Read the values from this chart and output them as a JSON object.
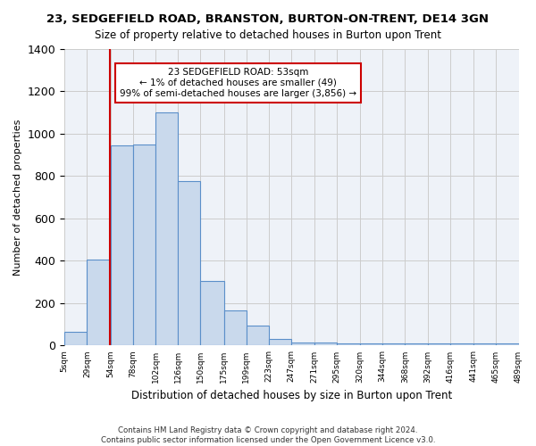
{
  "title": "23, SEDGEFIELD ROAD, BRANSTON, BURTON-ON-TRENT, DE14 3GN",
  "subtitle": "Size of property relative to detached houses in Burton upon Trent",
  "xlabel": "Distribution of detached houses by size in Burton upon Trent",
  "ylabel": "Number of detached properties",
  "footer1": "Contains HM Land Registry data © Crown copyright and database right 2024.",
  "footer2": "Contains public sector information licensed under the Open Government Licence v3.0.",
  "annotation_title": "23 SEDGEFIELD ROAD: 53sqm",
  "annotation_line2": "← 1% of detached houses are smaller (49)",
  "annotation_line3": "99% of semi-detached houses are larger (3,856) →",
  "subject_size": 53,
  "bar_edges": [
    5,
    29,
    54,
    78,
    102,
    126,
    150,
    175,
    199,
    223,
    247,
    271,
    295,
    320,
    344,
    368,
    392,
    416,
    441,
    465,
    489
  ],
  "bar_heights": [
    65,
    405,
    945,
    950,
    1100,
    775,
    305,
    165,
    95,
    30,
    15,
    15,
    10,
    10,
    10,
    10,
    10,
    10,
    10,
    10
  ],
  "bar_color": "#c9d9ec",
  "bar_edge_color": "#5b8fc9",
  "vline_color": "#cc0000",
  "vline_x": 53,
  "grid_color": "#cccccc",
  "bg_color": "#eef2f8",
  "annotation_box_color": "#cc0000",
  "ylim": [
    0,
    1400
  ],
  "tick_labels": [
    "5sqm",
    "29sqm",
    "54sqm",
    "78sqm",
    "102sqm",
    "126sqm",
    "150sqm",
    "175sqm",
    "199sqm",
    "223sqm",
    "247sqm",
    "271sqm",
    "295sqm",
    "320sqm",
    "344sqm",
    "368sqm",
    "392sqm",
    "416sqm",
    "441sqm",
    "465sqm",
    "489sqm"
  ]
}
